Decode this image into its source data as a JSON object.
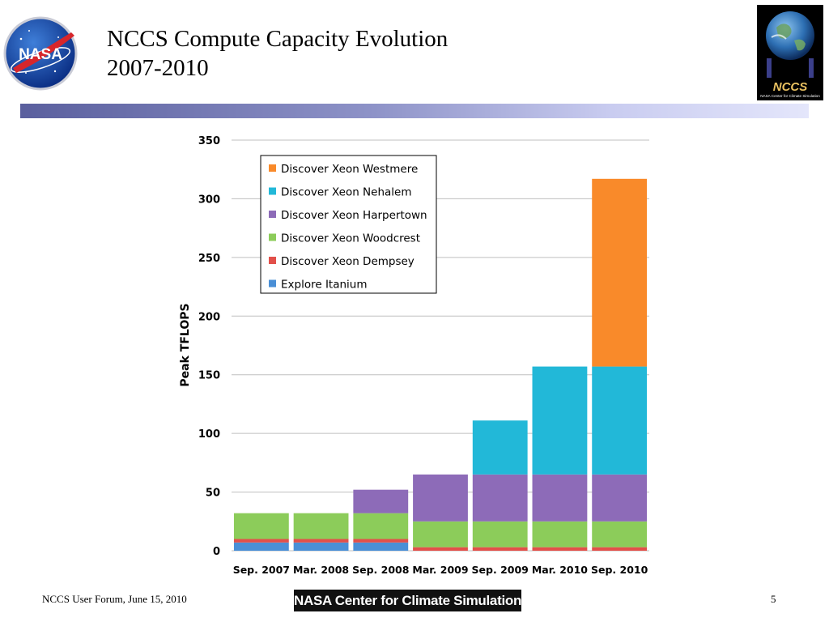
{
  "slide": {
    "title_line1": "NCCS Compute Capacity Evolution",
    "title_line2": "2007-2010",
    "footer_left": "NCCS User Forum, June 15, 2010",
    "footer_brand": "NASA Center for Climate Simulation",
    "page_number": "5",
    "title_bar_color": "#6b70b0"
  },
  "logos": {
    "nasa_logo_text": "NASA",
    "nccs_logo_text": "NCCS",
    "nccs_logo_subtext": "NASA Center for Climate Simulation"
  },
  "chart_data": {
    "type": "bar",
    "stacked": true,
    "title": "",
    "xlabel": "",
    "ylabel": "Peak TFLOPS",
    "ylim": [
      0,
      350
    ],
    "yticks": [
      0,
      50,
      100,
      150,
      200,
      250,
      300,
      350
    ],
    "grid": true,
    "legend_position": "top-left",
    "categories": [
      "Sep. 2007",
      "Mar. 2008",
      "Sep. 2008",
      "Mar. 2009",
      "Sep. 2009",
      "Mar. 2010",
      "Sep. 2010"
    ],
    "series": [
      {
        "name": "Explore Itanium",
        "color": "#4a8fd6",
        "values": [
          7,
          7,
          7,
          0,
          0,
          0,
          0
        ]
      },
      {
        "name": "Discover Xeon Dempsey",
        "color": "#e2504a",
        "values": [
          3,
          3,
          3,
          3,
          3,
          3,
          3
        ]
      },
      {
        "name": "Discover Xeon Woodcrest",
        "color": "#8ccc5a",
        "values": [
          22,
          22,
          22,
          22,
          22,
          22,
          22
        ]
      },
      {
        "name": "Discover Xeon Harpertown",
        "color": "#8d6bb8",
        "values": [
          0,
          0,
          20,
          40,
          40,
          40,
          40
        ]
      },
      {
        "name": "Discover Xeon Nehalem",
        "color": "#22b8d8",
        "values": [
          0,
          0,
          0,
          0,
          46,
          92,
          92
        ]
      },
      {
        "name": "Discover Xeon Westmere",
        "color": "#f98a2a",
        "values": [
          0,
          0,
          0,
          0,
          0,
          0,
          160
        ]
      }
    ]
  }
}
